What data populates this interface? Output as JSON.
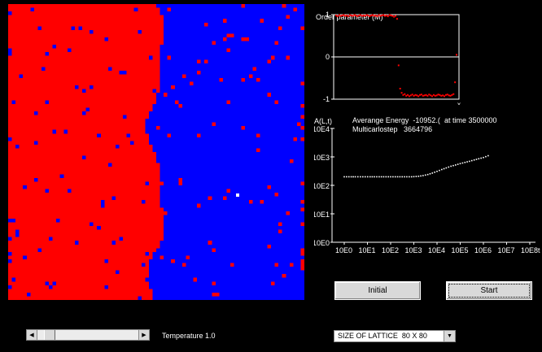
{
  "lattice": {
    "size": 80,
    "colors": {
      "up": "#ff0000",
      "down": "#0000ff",
      "marker": "#ffffff"
    }
  },
  "order_parameter": {
    "title": "Order parameter (M)",
    "ticks": [
      "1",
      "0",
      "-1"
    ],
    "x_end_label": "x",
    "point_color": "#ff0000"
  },
  "energy": {
    "y_label": "A(L,t)",
    "average_energy_label": "Averange Energy",
    "average_energy_value": "-10952.(",
    "at_time_label": "at time",
    "time_value": "3500000",
    "multicarlo_label": "Multicarlostep",
    "multicarlo_value": "3664796",
    "y_ticks": [
      "10E4",
      "10E3",
      "10E2",
      "10E1",
      "10E0"
    ],
    "x_ticks": [
      "10E0",
      "10E1",
      "10E2",
      "10E3",
      "10E4",
      "10E5",
      "10E6",
      "10E7",
      "10E8t"
    ],
    "point_color": "#ffffff"
  },
  "chart_data": [
    {
      "type": "scatter",
      "title": "Order parameter (M)",
      "ylim": [
        -1,
        1
      ],
      "series": [
        {
          "values": [
            0.98,
            0.96,
            0.99,
            0.97,
            0.98,
            0.99,
            0.97,
            0.98,
            0.96,
            0.99,
            0.98,
            0.97,
            0.99,
            0.98,
            0.96,
            0.98,
            0.99,
            0.97,
            0.98,
            0.97,
            0.99,
            0.98,
            0.96,
            0.98,
            0.99,
            0.97,
            0.98,
            0.96,
            0.99,
            0.97,
            0.98,
            0.99,
            0.97,
            0.98,
            0.96,
            0.99,
            0.98,
            0.97,
            0.95,
            0.97,
            0.9,
            -0.2,
            -0.75,
            -0.85,
            -0.9,
            -0.88,
            -0.92,
            -0.9,
            -0.93,
            -0.91,
            -0.89,
            -0.92,
            -0.9,
            -0.91,
            -0.93,
            -0.9,
            -0.89,
            -0.92,
            -0.91,
            -0.9,
            -0.92,
            -0.89,
            -0.91,
            -0.93,
            -0.9,
            -0.92,
            -0.91,
            -0.89,
            -0.9,
            -0.92,
            -0.91,
            -0.93,
            -0.9,
            -0.89,
            -0.91,
            -0.92,
            -0.9,
            -0.88,
            -0.6,
            0.05
          ]
        }
      ]
    },
    {
      "type": "scatter",
      "ylabel": "A(L,t)",
      "log_scale": true,
      "ylim": [
        1,
        10000
      ],
      "x": [
        1,
        2,
        3,
        5,
        8,
        13,
        20,
        32,
        50,
        80,
        126,
        200,
        316,
        500,
        800,
        1000,
        1600,
        2500,
        4000,
        6300,
        10000,
        16000,
        25000,
        40000,
        63000,
        100000,
        160000,
        250000,
        400000,
        630000,
        1000000,
        1600000
      ],
      "series": [
        {
          "values": [
            200,
            200,
            200,
            200,
            200,
            200,
            200,
            200,
            200,
            200,
            200,
            200,
            200,
            200,
            200,
            202,
            208,
            220,
            240,
            270,
            310,
            360,
            410,
            470,
            520,
            580,
            640,
            700,
            780,
            860,
            950,
            1100
          ]
        }
      ]
    }
  ],
  "buttons": {
    "initial": "Initial",
    "start": "Start"
  },
  "temperature": {
    "label": "Temperature 1.0",
    "value": 0.08
  },
  "lattice_size": {
    "label": "SIZE OF LATTICE",
    "value": "80 X 80"
  }
}
